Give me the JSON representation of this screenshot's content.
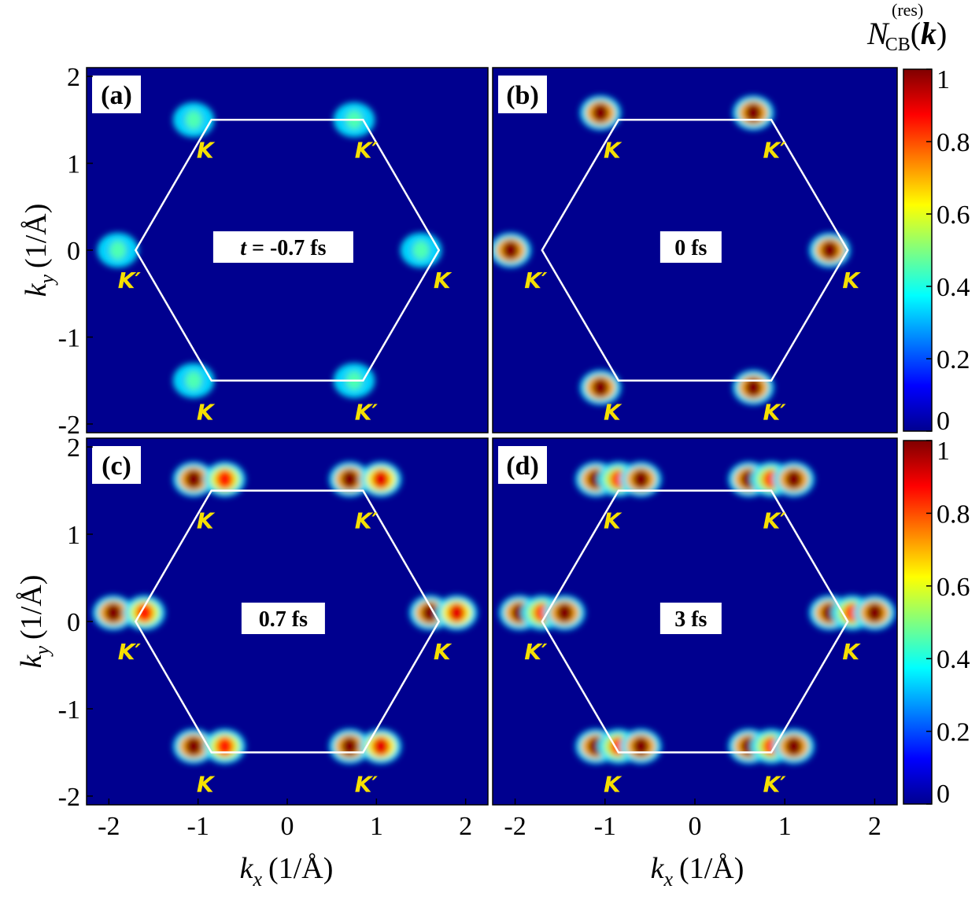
{
  "chart_data": {
    "type": "heatmap",
    "figure_title": "",
    "colorbar": {
      "title_main": "N",
      "title_sup": "(res)",
      "title_sub": "CB",
      "title_arg_open": "(",
      "title_arg": "k",
      "title_arg_close": ")",
      "range": [
        0,
        1
      ],
      "ticks": [
        0,
        0.2,
        0.4,
        0.6,
        0.8,
        1
      ],
      "tick_labels": [
        "0",
        "0.2",
        "0.4",
        "0.6",
        "0.8",
        "1"
      ],
      "colormap": "jet"
    },
    "axes": {
      "xlabel_var": "k",
      "xlabel_sub": "x",
      "xlabel_unit": "(1/Å)",
      "ylabel_var": "k",
      "ylabel_sub": "y",
      "ylabel_unit": "(1/Å)",
      "xlim": [
        -2.25,
        2.25
      ],
      "ylim": [
        -2.1,
        2.1
      ],
      "xticks": [
        -2,
        -1,
        0,
        1,
        2
      ],
      "xtick_labels": [
        "-2",
        "-1",
        "0",
        "1",
        "2"
      ],
      "yticks": [
        -2,
        -1,
        0,
        1,
        2
      ],
      "ytick_labels": [
        "-2",
        "-1",
        "0",
        "1",
        "2"
      ]
    },
    "brillouin_zone": {
      "shape": "hexagon",
      "vertices": [
        [
          1.7,
          0
        ],
        [
          0.85,
          1.5
        ],
        [
          -0.85,
          1.5
        ],
        [
          -1.7,
          0
        ],
        [
          -0.85,
          -1.5
        ],
        [
          0.85,
          -1.5
        ]
      ],
      "color": "#ffffff"
    },
    "valleys": [
      {
        "name": "K",
        "x": -0.85,
        "y": 1.5
      },
      {
        "name": "K′",
        "x": 0.85,
        "y": 1.5
      },
      {
        "name": "K′",
        "x": -1.7,
        "y": 0
      },
      {
        "name": "K",
        "x": 1.7,
        "y": 0
      },
      {
        "name": "K",
        "x": -0.85,
        "y": -1.5
      },
      {
        "name": "K′",
        "x": 0.85,
        "y": -1.5
      }
    ],
    "panels": [
      {
        "id": "a",
        "label": "(a)",
        "time_label": "t = -0.7 fs",
        "time_var": "t",
        "time_rest": " = -0.7 fs",
        "blobs": [
          {
            "x": -1.05,
            "y": 1.5,
            "value": 0.45
          },
          {
            "x": 0.75,
            "y": 1.5,
            "value": 0.45
          },
          {
            "x": -1.9,
            "y": 0,
            "value": 0.45
          },
          {
            "x": 1.5,
            "y": 0,
            "value": 0.45
          },
          {
            "x": -1.05,
            "y": -1.5,
            "value": 0.45
          },
          {
            "x": 0.75,
            "y": -1.5,
            "value": 0.45
          }
        ]
      },
      {
        "id": "b",
        "label": "(b)",
        "time_label": "0 fs",
        "blobs": [
          {
            "x": -1.05,
            "y": 1.58,
            "value": 1.0
          },
          {
            "x": 0.65,
            "y": 1.58,
            "value": 1.0
          },
          {
            "x": -2.05,
            "y": 0,
            "value": 1.0
          },
          {
            "x": 1.5,
            "y": 0,
            "value": 1.0
          },
          {
            "x": -1.05,
            "y": -1.58,
            "value": 1.0
          },
          {
            "x": 0.65,
            "y": -1.58,
            "value": 1.0
          }
        ]
      },
      {
        "id": "c",
        "label": "(c)",
        "time_label": "0.7 fs",
        "blobs": [
          {
            "x": -1.05,
            "y": 1.63,
            "value": 1.0
          },
          {
            "x": -0.7,
            "y": 1.63,
            "value": 0.85
          },
          {
            "x": 0.7,
            "y": 1.63,
            "value": 1.0
          },
          {
            "x": 1.05,
            "y": 1.63,
            "value": 0.9
          },
          {
            "x": -1.95,
            "y": 0.1,
            "value": 1.0
          },
          {
            "x": -1.6,
            "y": 0.1,
            "value": 0.85
          },
          {
            "x": 1.6,
            "y": 0.1,
            "value": 1.0
          },
          {
            "x": 1.9,
            "y": 0.1,
            "value": 0.9
          },
          {
            "x": -1.05,
            "y": -1.43,
            "value": 1.0
          },
          {
            "x": -0.7,
            "y": -1.43,
            "value": 0.85
          },
          {
            "x": 0.7,
            "y": -1.43,
            "value": 1.0
          },
          {
            "x": 1.05,
            "y": -1.43,
            "value": 0.9
          }
        ]
      },
      {
        "id": "d",
        "label": "(d)",
        "time_label": "3 fs",
        "blobs": [
          {
            "x": -1.1,
            "y": 1.63,
            "value": 1.0
          },
          {
            "x": -0.85,
            "y": 1.63,
            "value": 0.8
          },
          {
            "x": -0.6,
            "y": 1.63,
            "value": 1.0
          },
          {
            "x": 0.6,
            "y": 1.63,
            "value": 1.0
          },
          {
            "x": 0.85,
            "y": 1.63,
            "value": 0.8
          },
          {
            "x": 1.1,
            "y": 1.63,
            "value": 1.0
          },
          {
            "x": -1.95,
            "y": 0.1,
            "value": 1.0
          },
          {
            "x": -1.7,
            "y": 0.1,
            "value": 0.8
          },
          {
            "x": -1.45,
            "y": 0.1,
            "value": 1.0
          },
          {
            "x": 1.5,
            "y": 0.1,
            "value": 1.0
          },
          {
            "x": 1.75,
            "y": 0.1,
            "value": 0.8
          },
          {
            "x": 2.0,
            "y": 0.1,
            "value": 1.0
          },
          {
            "x": -1.1,
            "y": -1.43,
            "value": 1.0
          },
          {
            "x": -0.85,
            "y": -1.43,
            "value": 0.8
          },
          {
            "x": -0.6,
            "y": -1.43,
            "value": 1.0
          },
          {
            "x": 0.6,
            "y": -1.43,
            "value": 1.0
          },
          {
            "x": 0.85,
            "y": -1.43,
            "value": 0.8
          },
          {
            "x": 1.1,
            "y": -1.43,
            "value": 1.0
          }
        ]
      }
    ]
  }
}
